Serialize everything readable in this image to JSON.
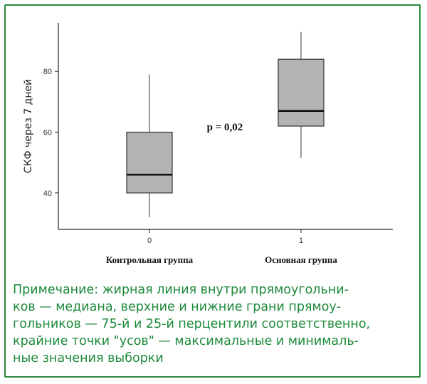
{
  "chart_data": {
    "type": "boxplot",
    "ylabel": "СКФ через 7 дней",
    "ylim": [
      28,
      96
    ],
    "yticks": [
      40,
      60,
      80
    ],
    "categories": [
      "0",
      "1"
    ],
    "group_labels": [
      "Контрольная группа",
      "Основная группа"
    ],
    "boxes": [
      {
        "category": "0",
        "min": 32,
        "q1": 40,
        "median": 46,
        "q3": 60,
        "max": 79
      },
      {
        "category": "1",
        "min": 51.5,
        "q1": 62,
        "median": 67,
        "q3": 84,
        "max": 93
      }
    ],
    "annotation": "p = 0,02",
    "grid": false,
    "box_fill": "#b3b3b3",
    "line_color": "#333333"
  },
  "note": {
    "lines": [
      "Примечание: жирная линия внутри прямоугольни-",
      "ков — медиана, верхние и нижние грани прямоу-",
      "гольников — 75-й и 25-й перцентили соответственно,",
      "крайние точки \"усов\" — максимальные и минималь-",
      "ные значения выборки"
    ],
    "color": "#1d8a3a"
  },
  "frame_color": "#2a8a3e"
}
